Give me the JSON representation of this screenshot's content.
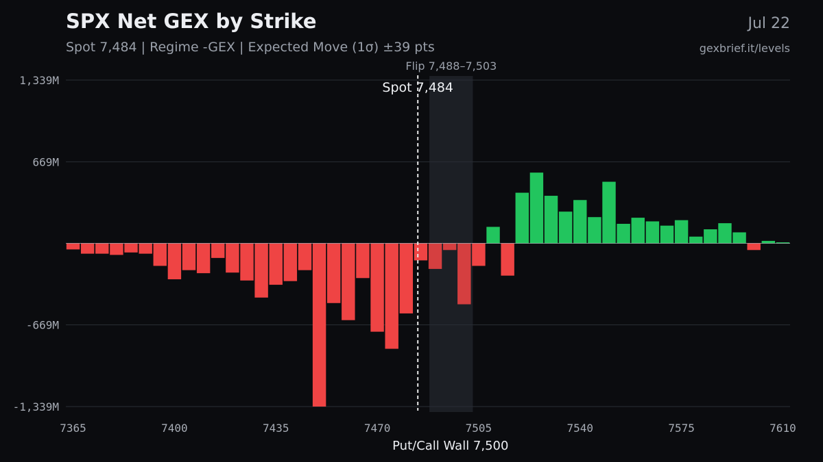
{
  "header": {
    "title": "SPX Net GEX by Strike",
    "subtitle": "Spot 7,484 | Regime -GEX | Expected Move (1σ) ±39 pts",
    "date": "Jul 22",
    "source": "gexbrief.it/levels"
  },
  "colors": {
    "background": "#0b0c0f",
    "negative": "#ef4444",
    "positive": "#22c55e",
    "grid": "#2a2e36",
    "flip_zone": "#1c1f25"
  },
  "chart_data": {
    "type": "bar",
    "x_unit": "strike",
    "strike_step": 5,
    "x": [
      7365,
      7370,
      7375,
      7380,
      7385,
      7390,
      7395,
      7400,
      7405,
      7410,
      7415,
      7420,
      7425,
      7430,
      7435,
      7440,
      7445,
      7450,
      7455,
      7460,
      7465,
      7470,
      7475,
      7480,
      7485,
      7490,
      7495,
      7500,
      7505,
      7510,
      7515,
      7520,
      7525,
      7530,
      7535,
      7540,
      7545,
      7550,
      7555,
      7560,
      7565,
      7570,
      7575,
      7580,
      7585,
      7590,
      7595,
      7600,
      7605,
      7610
    ],
    "values": [
      -50,
      -85,
      -85,
      -95,
      -75,
      -85,
      -185,
      -295,
      -220,
      -245,
      -120,
      -240,
      -305,
      -445,
      -340,
      -310,
      -220,
      -1339,
      -490,
      -630,
      -285,
      -725,
      -865,
      -575,
      -140,
      -210,
      -55,
      -500,
      -185,
      135,
      -265,
      415,
      580,
      390,
      260,
      355,
      215,
      505,
      160,
      210,
      180,
      145,
      190,
      55,
      115,
      165,
      90,
      -55,
      20,
      8
    ],
    "ylim": [
      -1339,
      1339
    ],
    "xlim": [
      7362.5,
      7612.5
    ],
    "yticks": [
      1339,
      669,
      -669,
      -1339
    ],
    "ytick_labels": [
      "1,339M",
      "669M",
      "-669M",
      "-1,339M"
    ],
    "xticks": [
      7365,
      7400,
      7435,
      7470,
      7505,
      7540,
      7575,
      7610
    ],
    "xtick_labels": [
      "7365",
      "7400",
      "7435",
      "7470",
      "7505",
      "7540",
      "7575",
      "7610"
    ],
    "grid": true,
    "spot": {
      "value": 7484,
      "label": "Spot 7,484"
    },
    "flip_zone": {
      "from": 7488,
      "to": 7503,
      "label": "Flip 7,488–7,503"
    },
    "wall": {
      "value": 7500,
      "label": "Put/Call Wall 7,500"
    }
  }
}
